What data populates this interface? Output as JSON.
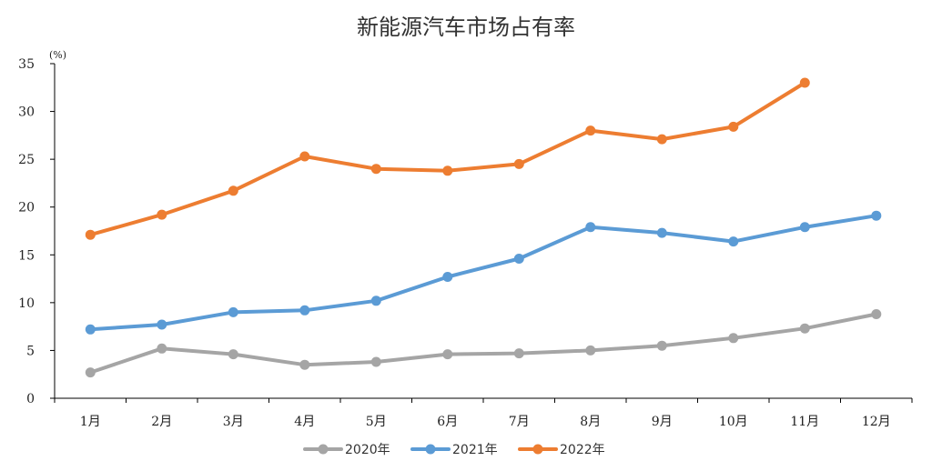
{
  "chart_data": {
    "type": "line",
    "title": "新能源汽车市场占有率",
    "y_unit": "(%)",
    "categories": [
      "1月",
      "2月",
      "3月",
      "4月",
      "5月",
      "6月",
      "7月",
      "8月",
      "9月",
      "10月",
      "11月",
      "12月"
    ],
    "series": [
      {
        "name": "2020年",
        "color": "#a5a5a5",
        "values": [
          2.7,
          5.2,
          4.6,
          3.5,
          3.8,
          4.6,
          4.7,
          5.0,
          5.5,
          6.3,
          7.3,
          8.8
        ]
      },
      {
        "name": "2021年",
        "color": "#5b9bd5",
        "values": [
          7.2,
          7.7,
          9.0,
          9.2,
          10.2,
          12.7,
          14.6,
          17.9,
          17.3,
          16.4,
          17.9,
          19.1
        ]
      },
      {
        "name": "2022年",
        "color": "#ed7d31",
        "values": [
          17.1,
          19.2,
          21.7,
          25.3,
          24.0,
          23.8,
          24.5,
          28.0,
          27.1,
          28.4,
          33.0,
          null
        ]
      }
    ],
    "ylim": [
      0,
      35
    ],
    "yticks": [
      0,
      5,
      10,
      15,
      20,
      25,
      30,
      35
    ],
    "grid": false,
    "legend": "bottom-center"
  }
}
